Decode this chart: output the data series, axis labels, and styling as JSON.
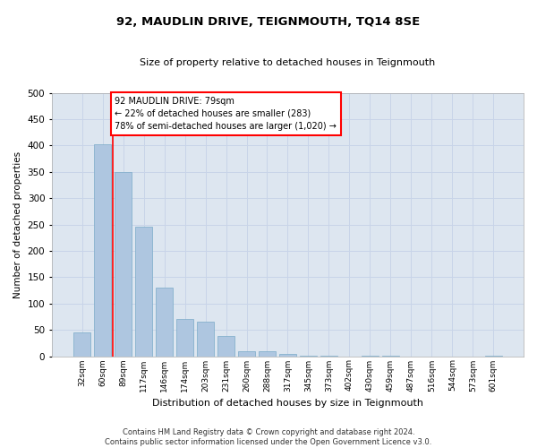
{
  "title": "92, MAUDLIN DRIVE, TEIGNMOUTH, TQ14 8SE",
  "subtitle": "Size of property relative to detached houses in Teignmouth",
  "xlabel": "Distribution of detached houses by size in Teignmouth",
  "ylabel": "Number of detached properties",
  "categories": [
    "32sqm",
    "60sqm",
    "89sqm",
    "117sqm",
    "146sqm",
    "174sqm",
    "203sqm",
    "231sqm",
    "260sqm",
    "288sqm",
    "317sqm",
    "345sqm",
    "373sqm",
    "402sqm",
    "430sqm",
    "459sqm",
    "487sqm",
    "516sqm",
    "544sqm",
    "573sqm",
    "601sqm"
  ],
  "values": [
    45,
    403,
    350,
    245,
    130,
    70,
    65,
    38,
    10,
    10,
    5,
    1,
    1,
    0,
    1,
    1,
    0,
    0,
    0,
    0,
    1
  ],
  "bar_color": "#aec6e0",
  "bar_edge_color": "#7aaac8",
  "annotation_text": "92 MAUDLIN DRIVE: 79sqm\n← 22% of detached houses are smaller (283)\n78% of semi-detached houses are larger (1,020) →",
  "annotation_box_color": "white",
  "annotation_box_edge_color": "red",
  "grid_color": "#c8d4e8",
  "bg_color": "#dde6f0",
  "ylim": [
    0,
    500
  ],
  "yticks": [
    0,
    50,
    100,
    150,
    200,
    250,
    300,
    350,
    400,
    450,
    500
  ],
  "footer_line1": "Contains HM Land Registry data © Crown copyright and database right 2024.",
  "footer_line2": "Contains public sector information licensed under the Open Government Licence v3.0.",
  "property_line_color": "red",
  "property_line_x": 1.5
}
